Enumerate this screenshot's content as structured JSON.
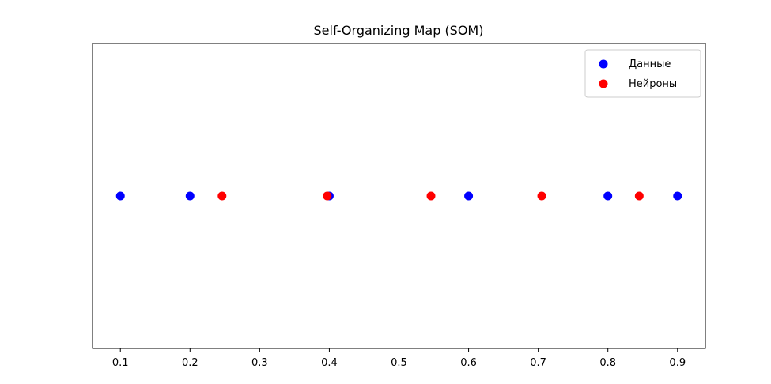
{
  "chart_data": {
    "type": "scatter",
    "title": "Self-Organizing Map (SOM)",
    "xlabel": "",
    "ylabel": "",
    "xlim": [
      0.06,
      0.94
    ],
    "ylim": [
      -1,
      1
    ],
    "xticks": [
      0.1,
      0.2,
      0.3,
      0.4,
      0.5,
      0.6,
      0.7,
      0.8,
      0.9
    ],
    "xtick_labels": [
      "0.1",
      "0.2",
      "0.3",
      "0.4",
      "0.5",
      "0.6",
      "0.7",
      "0.8",
      "0.9"
    ],
    "show_yticks": false,
    "grid": false,
    "legend_position": "top-right",
    "series": [
      {
        "name": "Данные",
        "color": "#0000ff",
        "x": [
          0.1,
          0.2,
          0.4,
          0.6,
          0.8,
          0.9
        ],
        "y": [
          0,
          0,
          0,
          0,
          0,
          0
        ]
      },
      {
        "name": "Нейроны",
        "color": "#ff0000",
        "x": [
          0.246,
          0.397,
          0.546,
          0.705,
          0.845
        ],
        "y": [
          0,
          0,
          0,
          0,
          0
        ]
      }
    ]
  }
}
